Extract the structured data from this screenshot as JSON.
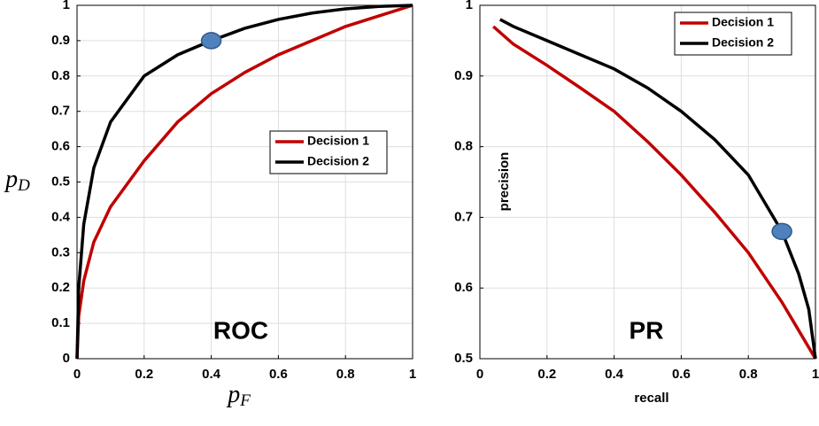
{
  "chart_data": [
    {
      "type": "line",
      "annotation": "ROC",
      "xlabel": "p",
      "xlabel_sub": "F",
      "ylabel": "p",
      "ylabel_sub": "D",
      "xlim": [
        0,
        1
      ],
      "ylim": [
        0,
        1
      ],
      "xticks": [
        0,
        0.2,
        0.4,
        0.6,
        0.8,
        1
      ],
      "yticks": [
        0,
        0.1,
        0.2,
        0.3,
        0.4,
        0.5,
        0.6,
        0.7,
        0.8,
        0.9,
        1
      ],
      "grid": true,
      "legend": "right",
      "series": [
        {
          "name": "Decision 1",
          "color": "#c00000",
          "x": [
            0,
            0.005,
            0.02,
            0.05,
            0.1,
            0.2,
            0.3,
            0.4,
            0.5,
            0.6,
            0.7,
            0.8,
            0.9,
            1
          ],
          "values": [
            0,
            0.12,
            0.22,
            0.33,
            0.43,
            0.56,
            0.67,
            0.75,
            0.81,
            0.86,
            0.9,
            0.94,
            0.97,
            1
          ]
        },
        {
          "name": "Decision 2",
          "color": "#000000",
          "x": [
            0,
            0.005,
            0.02,
            0.05,
            0.1,
            0.2,
            0.3,
            0.4,
            0.5,
            0.6,
            0.7,
            0.8,
            0.9,
            1
          ],
          "values": [
            0,
            0.2,
            0.38,
            0.54,
            0.67,
            0.8,
            0.86,
            0.9,
            0.935,
            0.96,
            0.978,
            0.99,
            0.997,
            1
          ]
        }
      ],
      "marker": {
        "x": 0.4,
        "y": 0.9,
        "color": "#4f81bd"
      }
    },
    {
      "type": "line",
      "annotation": "PR",
      "xlabel": "recall",
      "ylabel": "precision",
      "xlim": [
        0,
        1
      ],
      "ylim": [
        0.5,
        1
      ],
      "xticks": [
        0,
        0.2,
        0.4,
        0.6,
        0.8,
        1
      ],
      "yticks": [
        0.5,
        0.6,
        0.7,
        0.8,
        0.9,
        1
      ],
      "grid": true,
      "legend": "upper right",
      "series": [
        {
          "name": "Decision 1",
          "color": "#c00000",
          "x": [
            0.04,
            0.1,
            0.2,
            0.3,
            0.4,
            0.5,
            0.6,
            0.7,
            0.8,
            0.9,
            0.95,
            1
          ],
          "values": [
            0.97,
            0.945,
            0.915,
            0.883,
            0.85,
            0.807,
            0.76,
            0.707,
            0.65,
            0.58,
            0.54,
            0.5
          ]
        },
        {
          "name": "Decision 2",
          "color": "#000000",
          "x": [
            0.06,
            0.1,
            0.2,
            0.3,
            0.4,
            0.5,
            0.6,
            0.7,
            0.8,
            0.9,
            0.95,
            0.98,
            1
          ],
          "values": [
            0.98,
            0.97,
            0.95,
            0.93,
            0.91,
            0.883,
            0.85,
            0.81,
            0.76,
            0.68,
            0.62,
            0.57,
            0.5
          ]
        }
      ],
      "marker": {
        "x": 0.9,
        "y": 0.68,
        "color": "#4f81bd"
      }
    }
  ]
}
